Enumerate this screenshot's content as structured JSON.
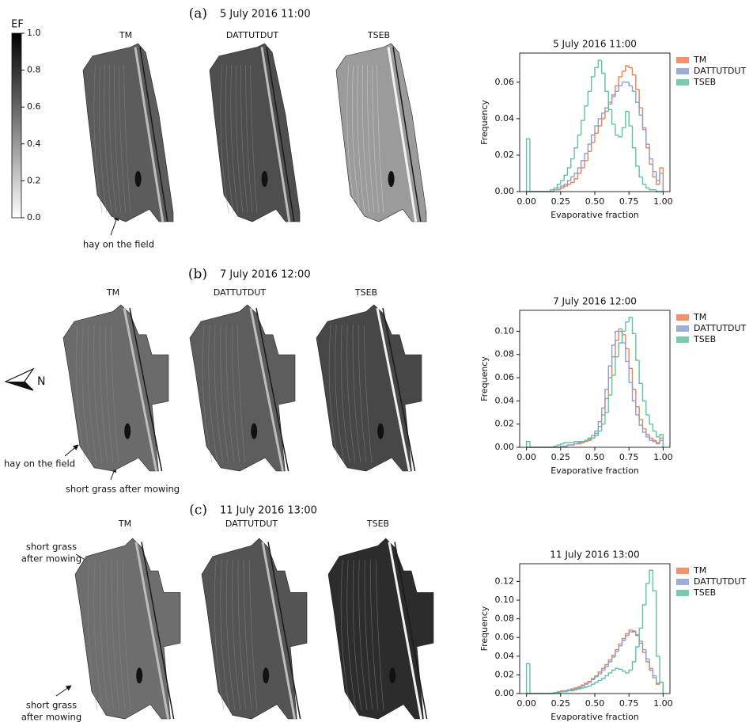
{
  "figure": {
    "colorbar": {
      "label": "EF",
      "lim": [
        0,
        1
      ],
      "ticks": [
        {
          "value": 0,
          "label": "0.0"
        },
        {
          "value": 0.2,
          "label": "0.2"
        },
        {
          "value": 0.4,
          "label": "0.4"
        },
        {
          "value": 0.6,
          "label": "0.6"
        },
        {
          "value": 0.8,
          "label": "0.8"
        },
        {
          "value": 1,
          "label": "1.0"
        }
      ]
    },
    "north_label": "N",
    "panels": [
      {
        "letter": "(a)",
        "date": "5 July 2016 11:00",
        "map_titles": [
          "TM",
          "DATTUTDUT",
          "TSEB"
        ],
        "annotations": [
          [
            "hay on the field"
          ]
        ]
      },
      {
        "letter": "(b)",
        "date": "7 July 2016 12:00",
        "map_titles": [
          "TM",
          "DATTUTDUT",
          "TSEB"
        ],
        "annotations": [
          [
            "hay on the field"
          ],
          [
            "short grass after mowing"
          ]
        ]
      },
      {
        "letter": "(c)",
        "date": "11 July 2016 13:00",
        "map_titles": [
          "TM",
          "DATTUTDUT",
          "TSEB"
        ],
        "annotations": [
          [
            "short grass",
            "after mowing"
          ],
          [
            "short grass",
            "after mowing"
          ]
        ]
      }
    ]
  },
  "chart_data": [
    {
      "type": "histogram",
      "title": "5 July 2016 11:00",
      "xlabel": "Evaporative fraction",
      "ylabel": "Frequency",
      "bins": [
        0,
        0.025,
        0.05,
        0.075,
        0.1,
        0.125,
        0.15,
        0.175,
        0.2,
        0.225,
        0.25,
        0.275,
        0.3,
        0.325,
        0.35,
        0.375,
        0.4,
        0.425,
        0.45,
        0.475,
        0.5,
        0.525,
        0.55,
        0.575,
        0.6,
        0.625,
        0.65,
        0.675,
        0.7,
        0.725,
        0.75,
        0.775,
        0.8,
        0.825,
        0.85,
        0.875,
        0.9,
        0.925,
        0.95,
        0.975,
        1
      ],
      "xlim": [
        -0.05,
        1.05
      ],
      "ylim": [
        0,
        0.076
      ],
      "xticks": [
        {
          "value": 0,
          "label": "0.00"
        },
        {
          "value": 0.25,
          "label": "0.25"
        },
        {
          "value": 0.5,
          "label": "0.50"
        },
        {
          "value": 0.75,
          "label": "0.75"
        },
        {
          "value": 1,
          "label": "1.00"
        }
      ],
      "yticks": [
        {
          "value": 0,
          "label": "0.00"
        },
        {
          "value": 0.02,
          "label": "0.02"
        },
        {
          "value": 0.04,
          "label": "0.04"
        },
        {
          "value": 0.06,
          "label": "0.06"
        }
      ],
      "series": [
        {
          "name": "TM",
          "color": "#f07f52",
          "values": [
            0,
            0,
            0,
            0,
            0,
            0,
            0,
            0,
            0.001,
            0.001,
            0.002,
            0.003,
            0.004,
            0.005,
            0.007,
            0.01,
            0.013,
            0.017,
            0.022,
            0.027,
            0.032,
            0.036,
            0.04,
            0.044,
            0.048,
            0.053,
            0.058,
            0.063,
            0.066,
            0.069,
            0.068,
            0.064,
            0.056,
            0.046,
            0.035,
            0.024,
            0.015,
            0.008,
            0.004,
            0.013
          ]
        },
        {
          "name": "DATTUTDUT",
          "color": "#8c9fcf",
          "values": [
            0,
            0,
            0,
            0,
            0,
            0,
            0,
            0,
            0.001,
            0.002,
            0.003,
            0.004,
            0.006,
            0.008,
            0.01,
            0.013,
            0.017,
            0.021,
            0.026,
            0.031,
            0.036,
            0.04,
            0.043,
            0.046,
            0.049,
            0.052,
            0.055,
            0.058,
            0.06,
            0.06,
            0.058,
            0.055,
            0.049,
            0.042,
            0.034,
            0.026,
            0.018,
            0.011,
            0.006,
            0.01
          ]
        },
        {
          "name": "TSEB",
          "color": "#5fc3a2",
          "values": [
            0.029,
            0,
            0,
            0,
            0,
            0,
            0,
            0.001,
            0.002,
            0.004,
            0.006,
            0.009,
            0.013,
            0.018,
            0.024,
            0.031,
            0.039,
            0.047,
            0.055,
            0.063,
            0.068,
            0.072,
            0.065,
            0.055,
            0.045,
            0.037,
            0.031,
            0.03,
            0.035,
            0.044,
            0.036,
            0.024,
            0.014,
            0.008,
            0.004,
            0.002,
            0.001,
            0.001,
            0,
            0
          ]
        }
      ]
    },
    {
      "type": "histogram",
      "title": "7 July 2016 12:00",
      "xlabel": "Evaporative fraction",
      "ylabel": "Frequency",
      "bins": [
        0,
        0.025,
        0.05,
        0.075,
        0.1,
        0.125,
        0.15,
        0.175,
        0.2,
        0.225,
        0.25,
        0.275,
        0.3,
        0.325,
        0.35,
        0.375,
        0.4,
        0.425,
        0.45,
        0.475,
        0.5,
        0.525,
        0.55,
        0.575,
        0.6,
        0.625,
        0.65,
        0.675,
        0.7,
        0.725,
        0.75,
        0.775,
        0.8,
        0.825,
        0.85,
        0.875,
        0.9,
        0.925,
        0.95,
        0.975,
        1
      ],
      "xlim": [
        -0.05,
        1.05
      ],
      "ylim": [
        0,
        0.118
      ],
      "xticks": [
        {
          "value": 0,
          "label": "0.00"
        },
        {
          "value": 0.25,
          "label": "0.25"
        },
        {
          "value": 0.5,
          "label": "0.50"
        },
        {
          "value": 0.75,
          "label": "0.75"
        },
        {
          "value": 1,
          "label": "1.00"
        }
      ],
      "yticks": [
        {
          "value": 0,
          "label": "0.00"
        },
        {
          "value": 0.02,
          "label": "0.02"
        },
        {
          "value": 0.04,
          "label": "0.04"
        },
        {
          "value": 0.06,
          "label": "0.06"
        },
        {
          "value": 0.08,
          "label": "0.08"
        },
        {
          "value": 0.1,
          "label": "0.10"
        }
      ],
      "series": [
        {
          "name": "TM",
          "color": "#f07f52",
          "values": [
            0,
            0,
            0,
            0,
            0,
            0,
            0,
            0,
            0,
            0,
            0.001,
            0.001,
            0.002,
            0.002,
            0.003,
            0.003,
            0.004,
            0.005,
            0.006,
            0.008,
            0.012,
            0.018,
            0.028,
            0.042,
            0.06,
            0.078,
            0.092,
            0.1,
            0.097,
            0.085,
            0.068,
            0.05,
            0.035,
            0.024,
            0.016,
            0.011,
            0.008,
            0.006,
            0.004,
            0.008
          ]
        },
        {
          "name": "DATTUTDUT",
          "color": "#8c9fcf",
          "values": [
            0,
            0,
            0,
            0,
            0,
            0,
            0,
            0,
            0,
            0,
            0.001,
            0.001,
            0.002,
            0.002,
            0.003,
            0.004,
            0.005,
            0.006,
            0.008,
            0.01,
            0.014,
            0.022,
            0.034,
            0.05,
            0.07,
            0.088,
            0.1,
            0.102,
            0.09,
            0.074,
            0.056,
            0.04,
            0.028,
            0.019,
            0.013,
            0.009,
            0.006,
            0.005,
            0.003,
            0.006
          ]
        },
        {
          "name": "TSEB",
          "color": "#5fc3a2",
          "values": [
            0.005,
            0,
            0,
            0,
            0,
            0,
            0,
            0,
            0.001,
            0.002,
            0.003,
            0.004,
            0.004,
            0.004,
            0.005,
            0.005,
            0.005,
            0.006,
            0.007,
            0.008,
            0.01,
            0.014,
            0.02,
            0.03,
            0.045,
            0.062,
            0.078,
            0.09,
            0.1,
            0.108,
            0.112,
            0.098,
            0.075,
            0.055,
            0.04,
            0.028,
            0.02,
            0.014,
            0.009,
            0.011
          ]
        }
      ]
    },
    {
      "type": "histogram",
      "title": "11 July 2016 13:00",
      "xlabel": "Evaporative fraction",
      "ylabel": "Frequency",
      "bins": [
        0,
        0.025,
        0.05,
        0.075,
        0.1,
        0.125,
        0.15,
        0.175,
        0.2,
        0.225,
        0.25,
        0.275,
        0.3,
        0.325,
        0.35,
        0.375,
        0.4,
        0.425,
        0.45,
        0.475,
        0.5,
        0.525,
        0.55,
        0.575,
        0.6,
        0.625,
        0.65,
        0.675,
        0.7,
        0.725,
        0.75,
        0.775,
        0.8,
        0.825,
        0.85,
        0.875,
        0.9,
        0.925,
        0.95,
        0.975,
        1
      ],
      "xlim": [
        -0.05,
        1.05
      ],
      "ylim": [
        0,
        0.139
      ],
      "xticks": [
        {
          "value": 0,
          "label": "0.00"
        },
        {
          "value": 0.25,
          "label": "0.25"
        },
        {
          "value": 0.5,
          "label": "0.50"
        },
        {
          "value": 0.75,
          "label": "0.75"
        },
        {
          "value": 1,
          "label": "1.00"
        }
      ],
      "yticks": [
        {
          "value": 0,
          "label": "0.00"
        },
        {
          "value": 0.02,
          "label": "0.02"
        },
        {
          "value": 0.04,
          "label": "0.04"
        },
        {
          "value": 0.06,
          "label": "0.06"
        },
        {
          "value": 0.08,
          "label": "0.08"
        },
        {
          "value": 0.1,
          "label": "0.10"
        },
        {
          "value": 0.12,
          "label": "0.12"
        }
      ],
      "series": [
        {
          "name": "TM",
          "color": "#f07f52",
          "values": [
            0,
            0,
            0,
            0,
            0,
            0,
            0,
            0,
            0.001,
            0.002,
            0.003,
            0.003,
            0.004,
            0.005,
            0.006,
            0.007,
            0.009,
            0.011,
            0.013,
            0.016,
            0.019,
            0.023,
            0.027,
            0.031,
            0.036,
            0.041,
            0.047,
            0.053,
            0.059,
            0.064,
            0.068,
            0.067,
            0.062,
            0.054,
            0.044,
            0.034,
            0.025,
            0.017,
            0.01,
            0.012
          ]
        },
        {
          "name": "DATTUTDUT",
          "color": "#8c9fcf",
          "values": [
            0,
            0,
            0,
            0,
            0,
            0,
            0,
            0,
            0.001,
            0.002,
            0.002,
            0.003,
            0.004,
            0.004,
            0.005,
            0.006,
            0.008,
            0.01,
            0.012,
            0.015,
            0.018,
            0.021,
            0.025,
            0.029,
            0.034,
            0.039,
            0.045,
            0.051,
            0.057,
            0.062,
            0.066,
            0.066,
            0.063,
            0.056,
            0.047,
            0.037,
            0.027,
            0.019,
            0.011,
            0.012
          ]
        },
        {
          "name": "TSEB",
          "color": "#5fc3a2",
          "values": [
            0.032,
            0,
            0,
            0,
            0,
            0,
            0,
            0,
            0.001,
            0.001,
            0.002,
            0.002,
            0.003,
            0.003,
            0.004,
            0.005,
            0.006,
            0.007,
            0.008,
            0.01,
            0.012,
            0.014,
            0.016,
            0.019,
            0.022,
            0.025,
            0.027,
            0.026,
            0.024,
            0.022,
            0.025,
            0.034,
            0.05,
            0.07,
            0.095,
            0.118,
            0.132,
            0.11,
            0.04,
            0.012
          ]
        }
      ]
    }
  ]
}
